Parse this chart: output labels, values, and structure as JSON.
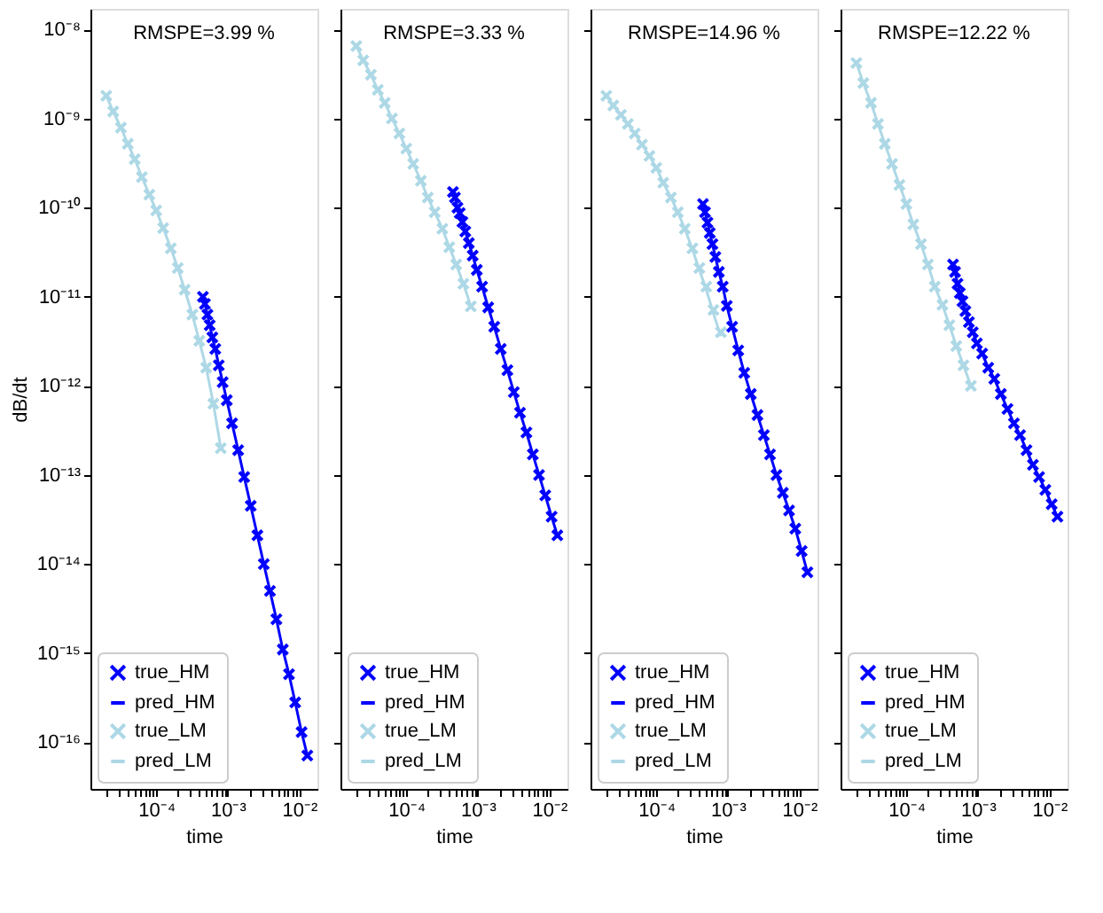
{
  "chart_data": [
    {
      "type": "line",
      "log": "xy",
      "legend": "bottom left",
      "grid": false,
      "xlabel": "time",
      "ylabel": "dB/dt",
      "annotations": [
        "RMSPE=3.99 %"
      ],
      "xlim": [
        1.2e-05,
        0.018
      ],
      "ylim": [
        3e-17,
        1.7e-08
      ],
      "xticks": [
        {
          "value": 2e-05,
          "label": null
        },
        {
          "value": 3e-05,
          "label": null
        },
        {
          "value": 4e-05,
          "label": null
        },
        {
          "value": 5e-05,
          "label": null
        },
        {
          "value": 6e-05,
          "label": null
        },
        {
          "value": 7e-05,
          "label": null
        },
        {
          "value": 8e-05,
          "label": null
        },
        {
          "value": 9e-05,
          "label": null
        },
        {
          "value": 0.0001,
          "label": "10⁻⁴"
        },
        {
          "value": 0.0002,
          "label": null
        },
        {
          "value": 0.0003,
          "label": null
        },
        {
          "value": 0.0004,
          "label": null
        },
        {
          "value": 0.0005,
          "label": null
        },
        {
          "value": 0.0006,
          "label": null
        },
        {
          "value": 0.0007,
          "label": null
        },
        {
          "value": 0.0008,
          "label": null
        },
        {
          "value": 0.0009,
          "label": null
        },
        {
          "value": 0.001,
          "label": "10⁻³"
        },
        {
          "value": 0.002,
          "label": null
        },
        {
          "value": 0.003,
          "label": null
        },
        {
          "value": 0.004,
          "label": null
        },
        {
          "value": 0.005,
          "label": null
        },
        {
          "value": 0.006,
          "label": null
        },
        {
          "value": 0.007,
          "label": null
        },
        {
          "value": 0.008,
          "label": null
        },
        {
          "value": 0.009,
          "label": null
        },
        {
          "value": 0.01,
          "label": "10⁻²"
        }
      ],
      "yticks": [
        {
          "value": 1e-08,
          "label": "10⁻⁸"
        },
        {
          "value": 1e-09,
          "label": "10⁻⁹"
        },
        {
          "value": 1e-10,
          "label": "10⁻¹⁰"
        },
        {
          "value": 1e-11,
          "label": "10⁻¹¹"
        },
        {
          "value": 1e-12,
          "label": "10⁻¹²"
        },
        {
          "value": 1e-13,
          "label": "10⁻¹³"
        },
        {
          "value": 1e-14,
          "label": "10⁻¹⁴"
        },
        {
          "value": 1e-15,
          "label": "10⁻¹⁵"
        },
        {
          "value": 1e-16,
          "label": "10⁻¹⁶"
        }
      ],
      "series": [
        {
          "name": "true_HM",
          "type": "scatter",
          "marker": "cross",
          "color": "#0000ff",
          "x": [
            0.00045,
            0.00048,
            0.00052,
            0.00056,
            0.00061,
            0.00067,
            0.00075,
            0.00085,
            0.00097,
            0.00115,
            0.0014,
            0.0017,
            0.0021,
            0.0026,
            0.0032,
            0.0039,
            0.0048,
            0.0059,
            0.0072,
            0.0088,
            0.0108,
            0.013
          ],
          "values": [
            1e-11,
            8.3e-12,
            6.3e-12,
            4.8e-12,
            3.5e-12,
            2.6e-12,
            1.7e-12,
            1.1e-12,
            6.9e-13,
            3.8e-13,
            1.9e-13,
            9.5e-14,
            4.5e-14,
            2.1e-14,
            1e-14,
            5e-15,
            2.4e-15,
            1.1e-15,
            5.8e-16,
            2.8e-16,
            1.3e-16,
            7.1e-17
          ]
        },
        {
          "name": "pred_HM",
          "color": "#0000ff",
          "x": [
            0.00045,
            0.00048,
            0.00052,
            0.00056,
            0.00061,
            0.00067,
            0.00075,
            0.00085,
            0.00097,
            0.00115,
            0.0014,
            0.0017,
            0.0021,
            0.0026,
            0.0032,
            0.0039,
            0.0048,
            0.0059,
            0.0072,
            0.0088,
            0.0108,
            0.013
          ],
          "values": [
            1e-11,
            8.3e-12,
            6.3e-12,
            4.8e-12,
            3.5e-12,
            2.6e-12,
            1.7e-12,
            1.1e-12,
            6.9e-13,
            3.8e-13,
            1.9e-13,
            9.5e-14,
            4.5e-14,
            2.1e-14,
            1e-14,
            5e-15,
            2.4e-15,
            1.1e-15,
            5.8e-16,
            2.8e-16,
            1.3e-16,
            7.1e-17
          ]
        },
        {
          "name": "true_LM",
          "type": "scatter",
          "marker": "cross",
          "color": "#add8e6",
          "x": [
            2e-05,
            2.5e-05,
            3.2e-05,
            4e-05,
            5e-05,
            6.3e-05,
            8e-05,
            0.0001,
            0.000125,
            0.00016,
            0.0002,
            0.00025,
            0.00032,
            0.0004,
            0.0005,
            0.00063,
            0.0008
          ],
          "values": [
            1.8e-09,
            1.2e-09,
            7.9e-10,
            5.2e-10,
            3.5e-10,
            2.2e-10,
            1.4e-10,
            9.3e-11,
            5.9e-11,
            3.5e-11,
            2.1e-11,
            1.2e-11,
            6.3e-12,
            3.2e-12,
            1.6e-12,
            6.3e-13,
            2e-13
          ]
        },
        {
          "name": "pred_LM",
          "color": "#add8e6",
          "x": [
            2e-05,
            2.5e-05,
            3.2e-05,
            4e-05,
            5e-05,
            6.3e-05,
            8e-05,
            0.0001,
            0.000125,
            0.00016,
            0.0002,
            0.00025,
            0.00032,
            0.0004,
            0.0005,
            0.00063,
            0.0008
          ],
          "values": [
            1.8e-09,
            1.2e-09,
            7.9e-10,
            5.2e-10,
            3.5e-10,
            2.2e-10,
            1.4e-10,
            9.3e-11,
            5.9e-11,
            3.5e-11,
            2.1e-11,
            1.2e-11,
            6.3e-12,
            3.2e-12,
            1.6e-12,
            6.3e-13,
            2e-13
          ]
        }
      ]
    },
    {
      "type": "line",
      "log": "xy",
      "legend": "bottom left",
      "grid": false,
      "xlabel": "time",
      "tick_labels": "x",
      "annotations": [
        "RMSPE=3.33 %"
      ],
      "xlim": [
        1.2e-05,
        0.018
      ],
      "ylim": [
        3e-17,
        1.7e-08
      ],
      "xticks": [
        {
          "value": 2e-05,
          "label": null
        },
        {
          "value": 3e-05,
          "label": null
        },
        {
          "value": 4e-05,
          "label": null
        },
        {
          "value": 5e-05,
          "label": null
        },
        {
          "value": 6e-05,
          "label": null
        },
        {
          "value": 7e-05,
          "label": null
        },
        {
          "value": 8e-05,
          "label": null
        },
        {
          "value": 9e-05,
          "label": null
        },
        {
          "value": 0.0001,
          "label": "10⁻⁴"
        },
        {
          "value": 0.0002,
          "label": null
        },
        {
          "value": 0.0003,
          "label": null
        },
        {
          "value": 0.0004,
          "label": null
        },
        {
          "value": 0.0005,
          "label": null
        },
        {
          "value": 0.0006,
          "label": null
        },
        {
          "value": 0.0007,
          "label": null
        },
        {
          "value": 0.0008,
          "label": null
        },
        {
          "value": 0.0009,
          "label": null
        },
        {
          "value": 0.001,
          "label": "10⁻³"
        },
        {
          "value": 0.002,
          "label": null
        },
        {
          "value": 0.003,
          "label": null
        },
        {
          "value": 0.004,
          "label": null
        },
        {
          "value": 0.005,
          "label": null
        },
        {
          "value": 0.006,
          "label": null
        },
        {
          "value": 0.007,
          "label": null
        },
        {
          "value": 0.008,
          "label": null
        },
        {
          "value": 0.009,
          "label": null
        },
        {
          "value": 0.01,
          "label": "10⁻²"
        }
      ],
      "yticks": [
        {
          "value": 1e-08,
          "label": null
        },
        {
          "value": 1e-09,
          "label": null
        },
        {
          "value": 1e-10,
          "label": null
        },
        {
          "value": 1e-11,
          "label": null
        },
        {
          "value": 1e-12,
          "label": null
        },
        {
          "value": 1e-13,
          "label": null
        },
        {
          "value": 1e-14,
          "label": null
        },
        {
          "value": 1e-15,
          "label": null
        },
        {
          "value": 1e-16,
          "label": null
        }
      ],
      "series": [
        {
          "name": "true_HM",
          "type": "scatter",
          "marker": "cross",
          "color": "#0000ff",
          "x": [
            0.00045,
            0.00048,
            0.00052,
            0.00056,
            0.00061,
            0.00067,
            0.00075,
            0.00085,
            0.00097,
            0.00115,
            0.0014,
            0.0017,
            0.0021,
            0.0026,
            0.0032,
            0.0039,
            0.0048,
            0.0059,
            0.0072,
            0.0088,
            0.0108,
            0.013
          ],
          "values": [
            1.5e-10,
            1.3e-10,
            1e-10,
            8.7e-11,
            6.9e-11,
            5.4e-11,
            4e-11,
            2.9e-11,
            2e-11,
            1.3e-11,
            7.6e-12,
            4.6e-12,
            2.6e-12,
            1.5e-12,
            8.5e-13,
            5e-13,
            3e-13,
            1.7e-13,
            1e-13,
            5.9e-14,
            3.4e-14,
            2.1e-14
          ]
        },
        {
          "name": "pred_HM",
          "color": "#0000ff",
          "x": [
            0.00045,
            0.00048,
            0.00052,
            0.00056,
            0.00061,
            0.00067,
            0.00075,
            0.00085,
            0.00097,
            0.00115,
            0.0014,
            0.0017,
            0.0021,
            0.0026,
            0.0032,
            0.0039,
            0.0048,
            0.0059,
            0.0072,
            0.0088,
            0.0108,
            0.013
          ],
          "values": [
            1.5e-10,
            1.3e-10,
            1e-10,
            8.7e-11,
            6.9e-11,
            5.4e-11,
            4e-11,
            2.9e-11,
            2e-11,
            1.3e-11,
            7.6e-12,
            4.6e-12,
            2.6e-12,
            1.5e-12,
            8.5e-13,
            5e-13,
            3e-13,
            1.7e-13,
            1e-13,
            5.9e-14,
            3.4e-14,
            2.1e-14
          ]
        },
        {
          "name": "true_LM",
          "type": "scatter",
          "marker": "cross",
          "color": "#add8e6",
          "x": [
            2e-05,
            2.5e-05,
            3.2e-05,
            4e-05,
            5e-05,
            6.3e-05,
            8e-05,
            0.0001,
            0.000125,
            0.00016,
            0.0002,
            0.00025,
            0.00032,
            0.0004,
            0.0005,
            0.00063,
            0.0008
          ],
          "values": [
            6.5e-09,
            4.5e-09,
            3.1e-09,
            2.1e-09,
            1.5e-09,
            1e-09,
            6.8e-10,
            4.6e-10,
            3.1e-10,
            2e-10,
            1.3e-10,
            8.9e-11,
            5.8e-11,
            3.6e-11,
            2.3e-11,
            1.4e-11,
            7.8e-12
          ]
        },
        {
          "name": "pred_LM",
          "color": "#add8e6",
          "x": [
            2e-05,
            2.5e-05,
            3.2e-05,
            4e-05,
            5e-05,
            6.3e-05,
            8e-05,
            0.0001,
            0.000125,
            0.00016,
            0.0002,
            0.00025,
            0.00032,
            0.0004,
            0.0005,
            0.00063,
            0.0008
          ],
          "values": [
            6.5e-09,
            4.5e-09,
            3.1e-09,
            2.1e-09,
            1.5e-09,
            1e-09,
            6.8e-10,
            4.6e-10,
            3.1e-10,
            2e-10,
            1.3e-10,
            8.9e-11,
            5.8e-11,
            3.6e-11,
            2.3e-11,
            1.4e-11,
            7.8e-12
          ]
        }
      ]
    },
    {
      "type": "line",
      "log": "xy",
      "legend": "bottom left",
      "grid": false,
      "xlabel": "time",
      "tick_labels": "x",
      "annotations": [
        "RMSPE=14.96 %"
      ],
      "xlim": [
        1.2e-05,
        0.018
      ],
      "ylim": [
        3e-17,
        1.7e-08
      ],
      "xticks": [
        {
          "value": 2e-05,
          "label": null
        },
        {
          "value": 3e-05,
          "label": null
        },
        {
          "value": 4e-05,
          "label": null
        },
        {
          "value": 5e-05,
          "label": null
        },
        {
          "value": 6e-05,
          "label": null
        },
        {
          "value": 7e-05,
          "label": null
        },
        {
          "value": 8e-05,
          "label": null
        },
        {
          "value": 9e-05,
          "label": null
        },
        {
          "value": 0.0001,
          "label": "10⁻⁴"
        },
        {
          "value": 0.0002,
          "label": null
        },
        {
          "value": 0.0003,
          "label": null
        },
        {
          "value": 0.0004,
          "label": null
        },
        {
          "value": 0.0005,
          "label": null
        },
        {
          "value": 0.0006,
          "label": null
        },
        {
          "value": 0.0007,
          "label": null
        },
        {
          "value": 0.0008,
          "label": null
        },
        {
          "value": 0.0009,
          "label": null
        },
        {
          "value": 0.001,
          "label": "10⁻³"
        },
        {
          "value": 0.002,
          "label": null
        },
        {
          "value": 0.003,
          "label": null
        },
        {
          "value": 0.004,
          "label": null
        },
        {
          "value": 0.005,
          "label": null
        },
        {
          "value": 0.006,
          "label": null
        },
        {
          "value": 0.007,
          "label": null
        },
        {
          "value": 0.008,
          "label": null
        },
        {
          "value": 0.009,
          "label": null
        },
        {
          "value": 0.01,
          "label": "10⁻²"
        }
      ],
      "yticks": [
        {
          "value": 1e-08,
          "label": null
        },
        {
          "value": 1e-09,
          "label": null
        },
        {
          "value": 1e-10,
          "label": null
        },
        {
          "value": 1e-11,
          "label": null
        },
        {
          "value": 1e-12,
          "label": null
        },
        {
          "value": 1e-13,
          "label": null
        },
        {
          "value": 1e-14,
          "label": null
        },
        {
          "value": 1e-15,
          "label": null
        },
        {
          "value": 1e-16,
          "label": null
        }
      ],
      "series": [
        {
          "name": "true_HM",
          "type": "scatter",
          "marker": "cross",
          "color": "#0000ff",
          "x": [
            0.00045,
            0.00048,
            0.00052,
            0.00056,
            0.00061,
            0.00067,
            0.00075,
            0.00085,
            0.00097,
            0.00115,
            0.0014,
            0.0017,
            0.0021,
            0.0026,
            0.0032,
            0.0039,
            0.0048,
            0.0059,
            0.0072,
            0.0088,
            0.0108,
            0.013
          ],
          "values": [
            1.1e-10,
            8.9e-11,
            6.8e-11,
            5.2e-11,
            3.9e-11,
            2.8e-11,
            1.9e-11,
            1.3e-11,
            7.9e-12,
            4.6e-12,
            2.5e-12,
            1.4e-12,
            8.1e-13,
            4.7e-13,
            2.8e-13,
            1.7e-13,
            1e-13,
            6.3e-14,
            4e-14,
            2.5e-14,
            1.4e-14,
            8.1e-15
          ]
        },
        {
          "name": "pred_HM",
          "color": "#0000ff",
          "x": [
            0.00045,
            0.00048,
            0.00052,
            0.00056,
            0.00061,
            0.00067,
            0.00075,
            0.00085,
            0.00097,
            0.00115,
            0.0014,
            0.0017,
            0.0021,
            0.0026,
            0.0032,
            0.0039,
            0.0048,
            0.0059,
            0.0072,
            0.0088,
            0.0108,
            0.013
          ],
          "values": [
            1.1e-10,
            8.9e-11,
            6.8e-11,
            5.2e-11,
            3.9e-11,
            2.8e-11,
            1.9e-11,
            1.3e-11,
            7.9e-12,
            4.6e-12,
            2.5e-12,
            1.4e-12,
            8.1e-13,
            4.7e-13,
            2.8e-13,
            1.7e-13,
            1e-13,
            6.3e-14,
            4e-14,
            2.5e-14,
            1.4e-14,
            8.1e-15
          ]
        },
        {
          "name": "true_LM",
          "type": "scatter",
          "marker": "cross",
          "color": "#add8e6",
          "x": [
            2e-05,
            2.5e-05,
            3.2e-05,
            4e-05,
            5e-05,
            6.3e-05,
            8e-05,
            0.0001,
            0.000125,
            0.00016,
            0.0002,
            0.00025,
            0.00032,
            0.0004,
            0.0005,
            0.00063,
            0.0008
          ],
          "values": [
            1.8e-09,
            1.4e-09,
            1.1e-09,
            8.7e-10,
            6.8e-10,
            5.1e-10,
            3.8e-10,
            2.8e-10,
            1.9e-10,
            1.3e-10,
            8.9e-11,
            5.8e-11,
            3.5e-11,
            2.1e-11,
            1.3e-11,
            7.1e-12,
            4e-12
          ]
        },
        {
          "name": "pred_LM",
          "color": "#add8e6",
          "x": [
            2e-05,
            2.5e-05,
            3.2e-05,
            4e-05,
            5e-05,
            6.3e-05,
            8e-05,
            0.0001,
            0.000125,
            0.00016,
            0.0002,
            0.00025,
            0.00032,
            0.0004,
            0.0005,
            0.00063,
            0.0008
          ],
          "values": [
            1.8e-09,
            1.4e-09,
            1.1e-09,
            8.7e-10,
            6.8e-10,
            5.1e-10,
            3.8e-10,
            2.8e-10,
            1.9e-10,
            1.3e-10,
            8.9e-11,
            5.8e-11,
            3.4e-11,
            2e-11,
            1.2e-11,
            6.5e-12,
            3.6e-12
          ]
        }
      ]
    },
    {
      "type": "line",
      "log": "xy",
      "legend": "bottom left",
      "grid": false,
      "xlabel": "time",
      "tick_labels": "x",
      "annotations": [
        "RMSPE=12.22 %"
      ],
      "xlim": [
        1.2e-05,
        0.018
      ],
      "ylim": [
        3e-17,
        1.7e-08
      ],
      "xticks": [
        {
          "value": 2e-05,
          "label": null
        },
        {
          "value": 3e-05,
          "label": null
        },
        {
          "value": 4e-05,
          "label": null
        },
        {
          "value": 5e-05,
          "label": null
        },
        {
          "value": 6e-05,
          "label": null
        },
        {
          "value": 7e-05,
          "label": null
        },
        {
          "value": 8e-05,
          "label": null
        },
        {
          "value": 9e-05,
          "label": null
        },
        {
          "value": 0.0001,
          "label": "10⁻⁴"
        },
        {
          "value": 0.0002,
          "label": null
        },
        {
          "value": 0.0003,
          "label": null
        },
        {
          "value": 0.0004,
          "label": null
        },
        {
          "value": 0.0005,
          "label": null
        },
        {
          "value": 0.0006,
          "label": null
        },
        {
          "value": 0.0007,
          "label": null
        },
        {
          "value": 0.0008,
          "label": null
        },
        {
          "value": 0.0009,
          "label": null
        },
        {
          "value": 0.001,
          "label": "10⁻³"
        },
        {
          "value": 0.002,
          "label": null
        },
        {
          "value": 0.003,
          "label": null
        },
        {
          "value": 0.004,
          "label": null
        },
        {
          "value": 0.005,
          "label": null
        },
        {
          "value": 0.006,
          "label": null
        },
        {
          "value": 0.007,
          "label": null
        },
        {
          "value": 0.008,
          "label": null
        },
        {
          "value": 0.009,
          "label": null
        },
        {
          "value": 0.01,
          "label": "10⁻²"
        }
      ],
      "yticks": [
        {
          "value": 1e-08,
          "label": null
        },
        {
          "value": 1e-09,
          "label": null
        },
        {
          "value": 1e-10,
          "label": null
        },
        {
          "value": 1e-11,
          "label": null
        },
        {
          "value": 1e-12,
          "label": null
        },
        {
          "value": 1e-13,
          "label": null
        },
        {
          "value": 1e-14,
          "label": null
        },
        {
          "value": 1e-15,
          "label": null
        },
        {
          "value": 1e-16,
          "label": null
        }
      ],
      "series": [
        {
          "name": "true_HM",
          "type": "scatter",
          "marker": "cross",
          "color": "#0000ff",
          "x": [
            0.00045,
            0.00048,
            0.00052,
            0.00056,
            0.00061,
            0.00067,
            0.00075,
            0.00085,
            0.00097,
            0.00115,
            0.0014,
            0.0017,
            0.0021,
            0.0026,
            0.0032,
            0.0039,
            0.0048,
            0.0059,
            0.0072,
            0.0088,
            0.0108,
            0.013
          ],
          "values": [
            2.3e-11,
            1.9e-11,
            1.4e-11,
            1.1e-11,
            8.9e-12,
            6.9e-12,
            5.2e-12,
            4e-12,
            3e-12,
            2.3e-12,
            1.6e-12,
            1.2e-12,
            8.1e-13,
            5.5e-13,
            3.8e-13,
            2.8e-13,
            1.9e-13,
            1.3e-13,
            9.5e-14,
            6.8e-14,
            4.7e-14,
            3.4e-14
          ]
        },
        {
          "name": "pred_HM",
          "color": "#0000ff",
          "x": [
            0.00045,
            0.00048,
            0.00052,
            0.00056,
            0.00061,
            0.00067,
            0.00075,
            0.00085,
            0.00097,
            0.00115,
            0.0014,
            0.0017,
            0.0021,
            0.0026,
            0.0032,
            0.0039,
            0.0048,
            0.0059,
            0.0072,
            0.0088,
            0.0108,
            0.013
          ],
          "values": [
            2.3e-11,
            1.9e-11,
            1.4e-11,
            1.1e-11,
            8.9e-12,
            6.9e-12,
            5.2e-12,
            4e-12,
            3e-12,
            2.3e-12,
            1.6e-12,
            1.2e-12,
            8.1e-13,
            5.5e-13,
            3.8e-13,
            2.8e-13,
            1.9e-13,
            1.3e-13,
            9.5e-14,
            6.8e-14,
            4.7e-14,
            3.4e-14
          ]
        },
        {
          "name": "true_LM",
          "type": "scatter",
          "marker": "cross",
          "color": "#add8e6",
          "x": [
            2e-05,
            2.5e-05,
            3.2e-05,
            4e-05,
            5e-05,
            6.3e-05,
            8e-05,
            0.0001,
            0.000125,
            0.00016,
            0.0002,
            0.00025,
            0.00032,
            0.0004,
            0.0005,
            0.00063,
            0.0008
          ],
          "values": [
            4.2e-09,
            2.5e-09,
            1.5e-09,
            8.7e-10,
            5.2e-10,
            3.1e-10,
            1.8e-10,
            1.1e-10,
            6.5e-11,
            3.9e-11,
            2.3e-11,
            1.3e-11,
            8.1e-12,
            4.8e-12,
            2.8e-12,
            1.7e-12,
            1e-12
          ]
        },
        {
          "name": "pred_LM",
          "color": "#add8e6",
          "x": [
            2e-05,
            2.5e-05,
            3.2e-05,
            4e-05,
            5e-05,
            6.3e-05,
            8e-05,
            0.0001,
            0.000125,
            0.00016,
            0.0002,
            0.00025,
            0.00032,
            0.0004,
            0.0005,
            0.00063,
            0.0008
          ],
          "values": [
            4.2e-09,
            2.5e-09,
            1.5e-09,
            8.7e-10,
            5.2e-10,
            3.1e-10,
            1.8e-10,
            1.1e-10,
            6.5e-11,
            3.9e-11,
            2.3e-11,
            1.3e-11,
            8.1e-12,
            4.8e-12,
            2.8e-12,
            1.7e-12,
            1e-12
          ]
        }
      ]
    }
  ]
}
